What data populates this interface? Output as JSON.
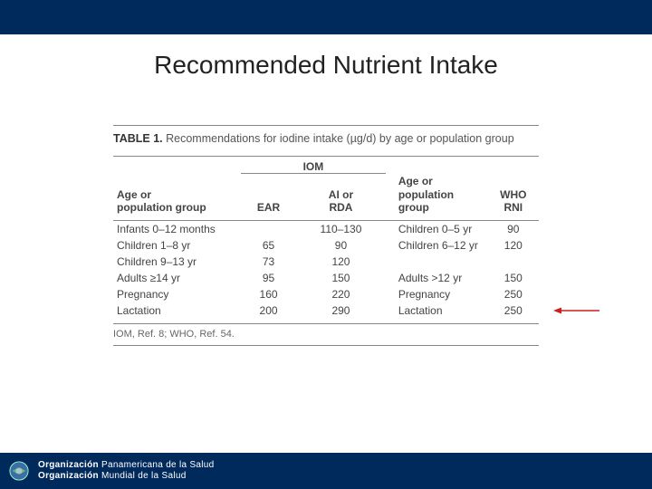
{
  "title": "Recommended Nutrient Intake",
  "table": {
    "caption_label": "TABLE 1.",
    "caption_text": "Recommendations for iodine intake (µg/d) by age or population group",
    "header": {
      "iom_label": "IOM",
      "age1": "Age or\npopulation group",
      "ear": "EAR",
      "airda": "AI or\nRDA",
      "age2": "Age or\npopulation\ngroup",
      "rni": "WHO\nRNI"
    },
    "rows": [
      {
        "age1": "Infants 0–12 months",
        "ear": "",
        "airda": "110–130",
        "age2": "Children 0–5 yr",
        "rni": "90"
      },
      {
        "age1": "Children 1–8 yr",
        "ear": "65",
        "airda": "90",
        "age2": "Children 6–12 yr",
        "rni": "120"
      },
      {
        "age1": "Children 9–13 yr",
        "ear": "73",
        "airda": "120",
        "age2": "",
        "rni": ""
      },
      {
        "age1": "Adults ≥14 yr",
        "ear": "95",
        "airda": "150",
        "age2": "Adults >12 yr",
        "rni": "150"
      },
      {
        "age1": "Pregnancy",
        "ear": "160",
        "airda": "220",
        "age2": "Pregnancy",
        "rni": "250"
      },
      {
        "age1": "Lactation",
        "ear": "200",
        "airda": "290",
        "age2": "Lactation",
        "rni": "250"
      }
    ],
    "footnote": "IOM, Ref. 8; WHO, Ref. 54."
  },
  "footer": {
    "line1_bold": "Organización ",
    "line1_rest": "Panamericana de la Salud",
    "line2_bold": "Organización ",
    "line2_rest": "Mundial de la Salud"
  },
  "colors": {
    "brand_blue": "#002a5c",
    "arrow_red": "#cc1f1f",
    "rule_grey": "#888888",
    "text_grey": "#555555"
  }
}
